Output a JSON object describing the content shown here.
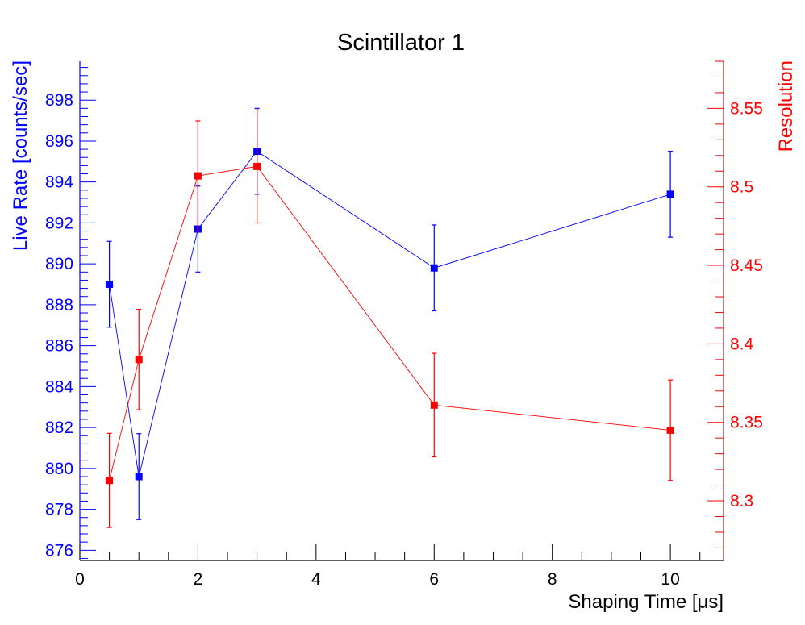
{
  "chart_data": {
    "type": "scatter",
    "title": "Scintillator 1",
    "xlabel": "Shaping Time [μs]",
    "ylabel_left": "Live Rate [counts/sec]",
    "ylabel_right": "Resolution",
    "xlim": [
      0,
      10.9
    ],
    "ylim_left": [
      875.5,
      899.9
    ],
    "ylim_right": [
      8.262,
      8.58
    ],
    "x_ticks": [
      "0",
      "2",
      "4",
      "6",
      "8",
      "10"
    ],
    "y_left_ticks": [
      "876",
      "878",
      "880",
      "882",
      "884",
      "886",
      "888",
      "890",
      "892",
      "894",
      "896",
      "898"
    ],
    "y_right_ticks": [
      "8.3",
      "8.35",
      "8.4",
      "8.45",
      "8.5",
      "8.55"
    ],
    "grid": false,
    "legend": "none",
    "series": [
      {
        "axis": "left",
        "color": "#0000ff",
        "x": [
          0.5,
          1,
          2,
          3,
          6,
          10
        ],
        "y": [
          889.0,
          879.6,
          891.7,
          895.5,
          889.8,
          893.4
        ],
        "err": [
          2.1,
          2.1,
          2.1,
          2.1,
          2.1,
          2.1
        ]
      },
      {
        "axis": "right",
        "color": "#ff0000",
        "x": [
          0.5,
          1,
          2,
          3,
          6,
          10
        ],
        "y": [
          8.313,
          8.39,
          8.507,
          8.513,
          8.361,
          8.345
        ],
        "err": [
          0.03,
          0.032,
          0.035,
          0.036,
          0.033,
          0.032
        ]
      }
    ]
  }
}
